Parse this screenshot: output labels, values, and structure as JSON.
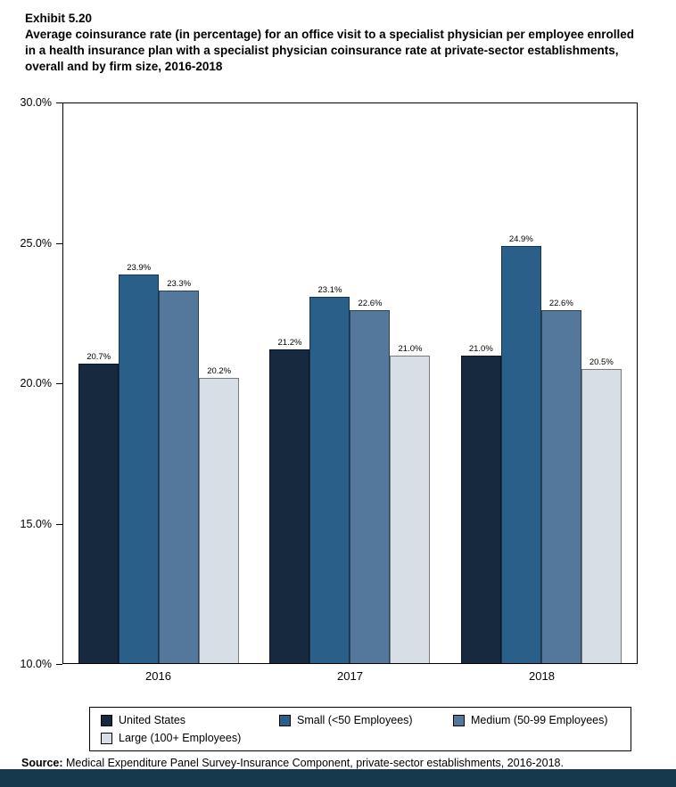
{
  "header": {
    "exhibit": "Exhibit 5.20",
    "title": "Average coinsurance rate (in percentage) for an office visit to a specialist physician per employee enrolled in a health insurance plan with a specialist physician coinsurance rate at private-sector establishments, overall and by firm size, 2016-2018"
  },
  "chart_data": {
    "type": "bar",
    "title": "Average coinsurance rate (in percentage) for an office visit to a specialist physician, overall and by firm size, 2016-2018",
    "categories": [
      "2016",
      "2017",
      "2018"
    ],
    "series": [
      {
        "name": "United States",
        "color": "#16293e",
        "values": [
          20.7,
          21.2,
          21.0
        ]
      },
      {
        "name": "Small (<50 Employees)",
        "color": "#2a5f8a",
        "values": [
          23.9,
          23.1,
          24.9
        ]
      },
      {
        "name": "Medium (50-99 Employees)",
        "color": "#53789b",
        "values": [
          23.3,
          22.6,
          22.6
        ]
      },
      {
        "name": "Large (100+ Employees)",
        "color": "#d8dee6",
        "values": [
          20.2,
          21.0,
          20.5
        ]
      }
    ],
    "ylim": [
      10,
      30
    ],
    "yticks": [
      10,
      15,
      20,
      25,
      30
    ],
    "ytick_suffix": "%",
    "value_label_suffix": "%",
    "grid": false,
    "legend_position": "bottom"
  },
  "source": {
    "label": "Source:",
    "text": " Medical Expenditure Panel Survey-Insurance Component, private-sector establishments, 2016-2018."
  }
}
